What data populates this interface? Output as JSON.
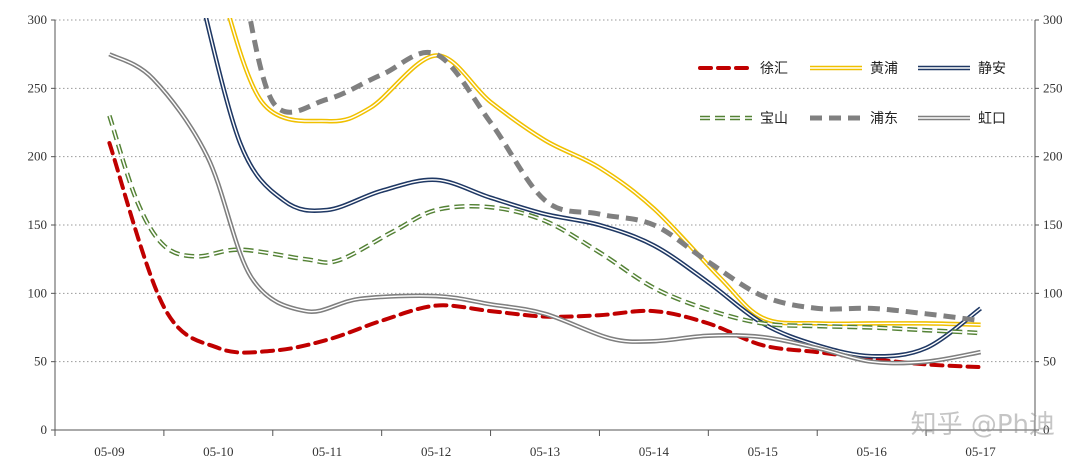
{
  "chart_data": {
    "type": "line",
    "categories": [
      "05-09",
      "05-10",
      "05-11",
      "05-12",
      "05-13",
      "05-14",
      "05-15",
      "05-16",
      "05-17"
    ],
    "ylim": [
      0,
      300
    ],
    "yticks": [
      0,
      50,
      100,
      150,
      200,
      250,
      300
    ],
    "grid": "horizontal dotted",
    "legend_position": "top-right",
    "series": [
      {
        "name": "徐汇",
        "style": "dashed",
        "color": "#c00000",
        "points": [
          [
            0.0,
            210
          ],
          [
            0.5,
            90
          ],
          [
            1.0,
            60
          ],
          [
            1.5,
            58
          ],
          [
            2.0,
            66
          ],
          [
            2.5,
            80
          ],
          [
            3.0,
            91
          ],
          [
            3.5,
            87
          ],
          [
            4.0,
            83
          ],
          [
            4.5,
            84
          ],
          [
            5.0,
            87
          ],
          [
            5.5,
            78
          ],
          [
            6.0,
            62
          ],
          [
            6.5,
            57
          ],
          [
            7.0,
            52
          ],
          [
            7.5,
            48
          ],
          [
            8.0,
            46
          ]
        ]
      },
      {
        "name": "黄浦",
        "style": "double",
        "color": "#f0c000",
        "points": [
          [
            1.0,
            330
          ],
          [
            1.4,
            240
          ],
          [
            2.0,
            226
          ],
          [
            2.4,
            236
          ],
          [
            3.0,
            274
          ],
          [
            3.5,
            240
          ],
          [
            4.0,
            212
          ],
          [
            4.5,
            192
          ],
          [
            5.0,
            162
          ],
          [
            5.6,
            112
          ],
          [
            6.0,
            82
          ],
          [
            6.5,
            78
          ],
          [
            7.0,
            78
          ],
          [
            7.5,
            78
          ],
          [
            8.0,
            77
          ]
        ]
      },
      {
        "name": "静安",
        "style": "double",
        "color": "#1f3864",
        "points": [
          [
            0.8,
            330
          ],
          [
            1.2,
            210
          ],
          [
            1.6,
            168
          ],
          [
            2.0,
            161
          ],
          [
            2.5,
            175
          ],
          [
            3.0,
            183
          ],
          [
            3.5,
            170
          ],
          [
            4.0,
            158
          ],
          [
            4.5,
            150
          ],
          [
            5.0,
            135
          ],
          [
            5.5,
            108
          ],
          [
            6.0,
            78
          ],
          [
            6.5,
            62
          ],
          [
            7.0,
            54
          ],
          [
            7.5,
            60
          ],
          [
            8.0,
            89
          ]
        ]
      },
      {
        "name": "宝山",
        "style": "double-dashed",
        "color": "#548235",
        "points": [
          [
            0.0,
            230
          ],
          [
            0.25,
            168
          ],
          [
            0.5,
            135
          ],
          [
            0.8,
            127
          ],
          [
            1.2,
            132
          ],
          [
            1.8,
            125
          ],
          [
            2.1,
            124
          ],
          [
            2.6,
            145
          ],
          [
            3.0,
            161
          ],
          [
            3.5,
            163
          ],
          [
            4.0,
            153
          ],
          [
            4.5,
            130
          ],
          [
            5.0,
            104
          ],
          [
            5.5,
            88
          ],
          [
            6.0,
            78
          ],
          [
            6.5,
            76
          ],
          [
            7.0,
            75
          ],
          [
            7.5,
            73
          ],
          [
            8.0,
            71
          ]
        ]
      },
      {
        "name": "浦东",
        "style": "dashed-thick",
        "color": "#808080",
        "points": [
          [
            1.2,
            340
          ],
          [
            1.5,
            240
          ],
          [
            2.0,
            242
          ],
          [
            2.5,
            260
          ],
          [
            3.0,
            275
          ],
          [
            3.5,
            225
          ],
          [
            4.0,
            168
          ],
          [
            4.5,
            158
          ],
          [
            5.0,
            150
          ],
          [
            5.5,
            123
          ],
          [
            6.0,
            98
          ],
          [
            6.5,
            89
          ],
          [
            7.0,
            89
          ],
          [
            7.5,
            85
          ],
          [
            8.0,
            80
          ]
        ]
      },
      {
        "name": "虹口",
        "style": "double",
        "color": "#7f7f7f",
        "points": [
          [
            0.0,
            275
          ],
          [
            0.4,
            257
          ],
          [
            0.9,
            200
          ],
          [
            1.3,
            112
          ],
          [
            1.8,
            87
          ],
          [
            2.3,
            96
          ],
          [
            3.0,
            98
          ],
          [
            3.5,
            92
          ],
          [
            4.0,
            85
          ],
          [
            4.6,
            67
          ],
          [
            5.0,
            65
          ],
          [
            5.5,
            69
          ],
          [
            6.0,
            68
          ],
          [
            6.5,
            60
          ],
          [
            7.0,
            50
          ],
          [
            7.5,
            50
          ],
          [
            8.0,
            57
          ]
        ]
      }
    ]
  },
  "watermark": "知乎 @Ph迪"
}
